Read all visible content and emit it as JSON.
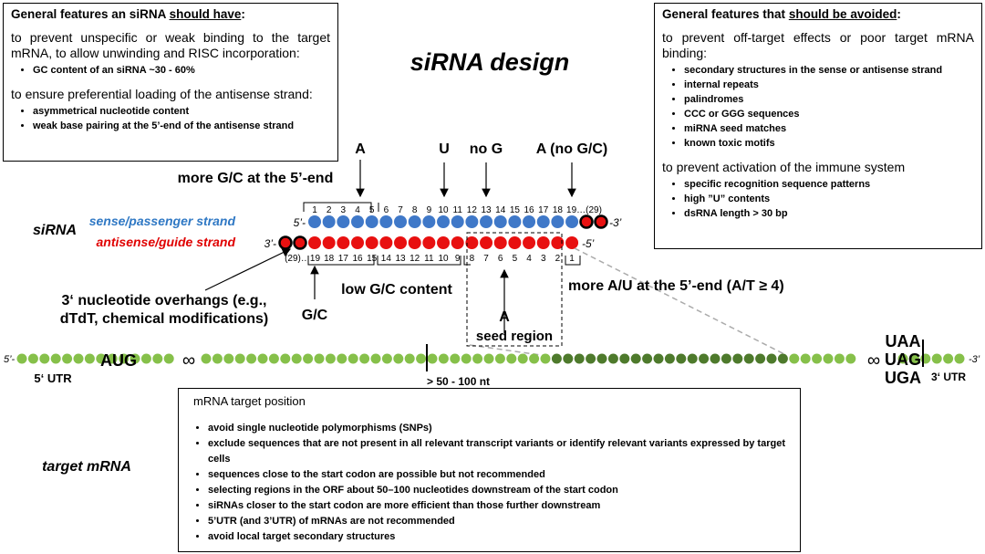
{
  "title": "siRNA design",
  "left_box": {
    "heading": [
      "General features an siRNA",
      "should have",
      ":"
    ],
    "sections": [
      {
        "text": "to prevent unspecific or weak binding to the target mRNA, to allow unwinding and RISC incorporation:",
        "bullets": [
          "GC content of an siRNA ~30 - 60%"
        ]
      },
      {
        "text": "to ensure preferential loading of the antisense strand:",
        "bullets": [
          "asymmetrical nucleotide content",
          "weak base pairing at the 5’-end of the antisense strand"
        ]
      }
    ]
  },
  "right_box": {
    "heading": [
      "General features that",
      "should be avoided",
      ":"
    ],
    "sections": [
      {
        "text": "to prevent off-target effects or poor target mRNA binding:",
        "bullets": [
          "secondary structures in the sense or antisense strand",
          "internal repeats",
          "palindromes",
          "CCC or GGG sequences",
          "miRNA seed matches",
          "known toxic motifs"
        ]
      },
      {
        "text": "to prevent activation of the immune system",
        "bullets": [
          "specific recognition sequence patterns",
          "high ”U” contents",
          "dsRNA length > 30 bp"
        ]
      }
    ]
  },
  "sirna": {
    "label": "siRNA",
    "sense_label": "sense/passenger strand",
    "antisense_label": "antisense/guide strand",
    "sense_5": "5’-",
    "sense_3": "-3’",
    "antisense_3": "3’-",
    "antisense_5": "-5’",
    "sense_positions": [
      "1",
      "2",
      "3",
      "4",
      "5",
      "6",
      "7",
      "8",
      "9",
      "10",
      "11",
      "12",
      "13",
      "14",
      "15",
      "16",
      "17",
      "18",
      "19…(29)"
    ],
    "antisense_positions": [
      "(29)…19",
      "18",
      "17",
      "16",
      "15",
      "14",
      "13",
      "12",
      "11",
      "10",
      "9",
      "8",
      "7",
      "6",
      "5",
      "4",
      "3",
      "2",
      "1"
    ]
  },
  "annotations": {
    "gc_5end": "more G/C at the 5’-end",
    "a_pos3": "A",
    "u_pos10": "U",
    "no_g_pos13": "no G",
    "a_pos19": "A (no G/C)",
    "overhangs": [
      "3‘ nucleotide overhangs (e.g.,",
      "dTdT, chemical modifications)"
    ],
    "gc_pos19": "G/C",
    "low_gc": "low G/C content",
    "a_pos10": "A",
    "seed_region": "seed region",
    "au_5end": "more A/U at the 5’-end (A/T ≥ 4)"
  },
  "mrna": {
    "five_prime": "5’-",
    "start_codon": "AUG",
    "gap_left": "∞",
    "utr5": "5‘ UTR",
    "distance": "> 50 - 100 nt",
    "gap_right": "∞",
    "stop_codons": [
      "UAA",
      "UAG",
      "UGA"
    ],
    "utr3": "3‘ UTR",
    "three_prime": "-3’"
  },
  "target": {
    "label": "target mRNA",
    "box_title": "mRNA target position",
    "bullets": [
      "avoid single nucleotide polymorphisms (SNPs)",
      "exclude sequences that are not present in all relevant transcript variants or identify relevant variants expressed by target cells",
      "sequences close to the start codon are possible but not recommended",
      "selecting regions in the ORF about 50–100 nucleotides downstream of the start codon",
      "siRNAs closer to the start codon are more efficient than those further downstream",
      "5’UTR (and 3’UTR) of mRNAs are not recommended",
      "avoid local target secondary structures"
    ]
  }
}
